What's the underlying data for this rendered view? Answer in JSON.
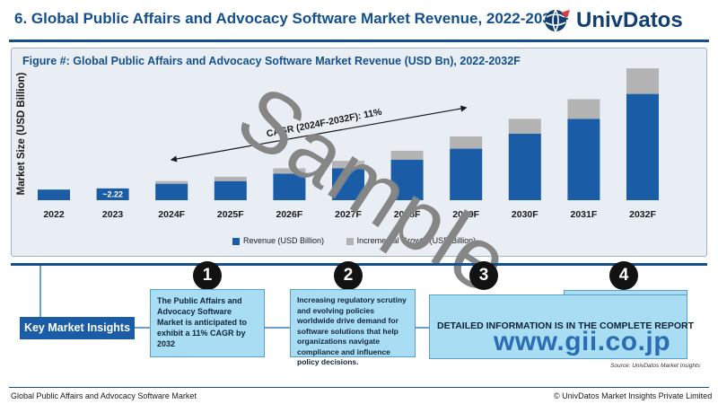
{
  "header": {
    "title": "6. Global Public Affairs and Advocacy Software Market Revenue, 2022-2032F",
    "logo_text": "UnivDatos"
  },
  "colors": {
    "brand": "#14508e",
    "revenue": "#1a5ca6",
    "incremental": "#b3b3b3",
    "insight_box": "#a8ddf4"
  },
  "chart_data": {
    "type": "bar",
    "stacked": true,
    "title": "Figure #: Global Public Affairs and Advocacy Software Market Revenue (USD Bn), 2022-2032F",
    "ylabel": "Market Size (USD Billion)",
    "xlabel": "",
    "categories": [
      "2022",
      "2023",
      "2024F",
      "2025F",
      "2026F",
      "2027F",
      "2028F",
      "2029F",
      "2030F",
      "2031F",
      "2032F"
    ],
    "tick_labels": [
      "2022",
      "2023",
      "2024F",
      "2025F",
      "2026F",
      "2027F",
      "2028F",
      "2029F",
      "2030F",
      "2031F",
      "2032F"
    ],
    "series": [
      {
        "name": "Revenue (USD Billion)",
        "values": [
          2.0,
          2.22,
          3.1,
          3.6,
          5.0,
          6.0,
          7.6,
          9.7,
          12.5,
          15.3,
          20.0
        ]
      },
      {
        "name": "Incremental Growth (USD Billion)",
        "values": [
          0,
          0,
          0.5,
          0.8,
          1.0,
          1.4,
          1.7,
          2.3,
          2.8,
          3.7,
          4.8
        ]
      }
    ],
    "data_labels": [
      {
        "category": "2023",
        "text": "~2.22"
      }
    ],
    "annotation": {
      "text": "CAGR (2024F-2032F): 11%"
    },
    "ylim": [
      0,
      25
    ],
    "legend_position": "bottom",
    "grid": false
  },
  "legend": {
    "revenue": "Revenue (USD Billion)",
    "incremental": "Incremental Growth (USD Billion)"
  },
  "watermark": "Sample",
  "insights": {
    "label": "Key Market Insights",
    "items": [
      {
        "number": "1",
        "text": "The Public Affairs and Advocacy Software Market is anticipated to exhibit a 11% CAGR by 2032"
      },
      {
        "number": "2",
        "text": "Increasing regulatory scrutiny and evolving policies worldwide drive demand for software solutions that help organizations navigate compliance and influence policy decisions."
      },
      {
        "number": "3",
        "text": "DETAILED INFORMATION IS IN THE COMPLETE REPORT"
      },
      {
        "number": "4",
        "text": ""
      }
    ]
  },
  "gii_watermark": "www.gii.co.jp",
  "source": "Source: UnivDatos Market Insights",
  "footer": {
    "left": "Global Public Affairs and Advocacy Software Market",
    "right": "© UnivDatos Market Insights Private Limited"
  }
}
